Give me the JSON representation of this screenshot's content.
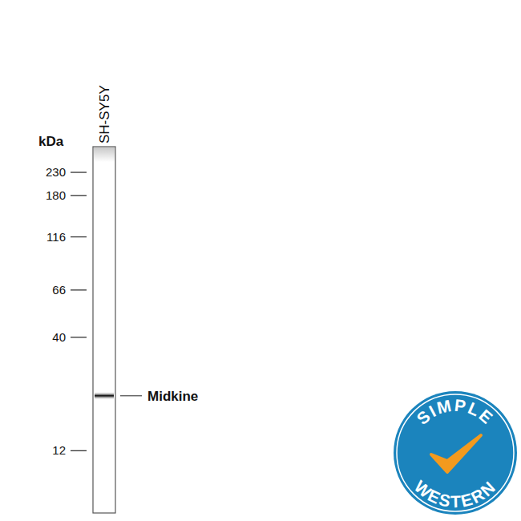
{
  "chart_data": {
    "type": "blot",
    "categories": [
      "SH-SY5Y"
    ],
    "y_label": "kDa",
    "log": "y",
    "ylim": [
      6.2,
      302
    ],
    "yticks": [
      12,
      40,
      66,
      116,
      180,
      230
    ],
    "series": [
      {
        "name": "Midkine",
        "color": "#111111",
        "values": [
          21.5
        ]
      }
    ],
    "annotations": [
      "SIMPLE",
      "WESTERN"
    ]
  }
}
